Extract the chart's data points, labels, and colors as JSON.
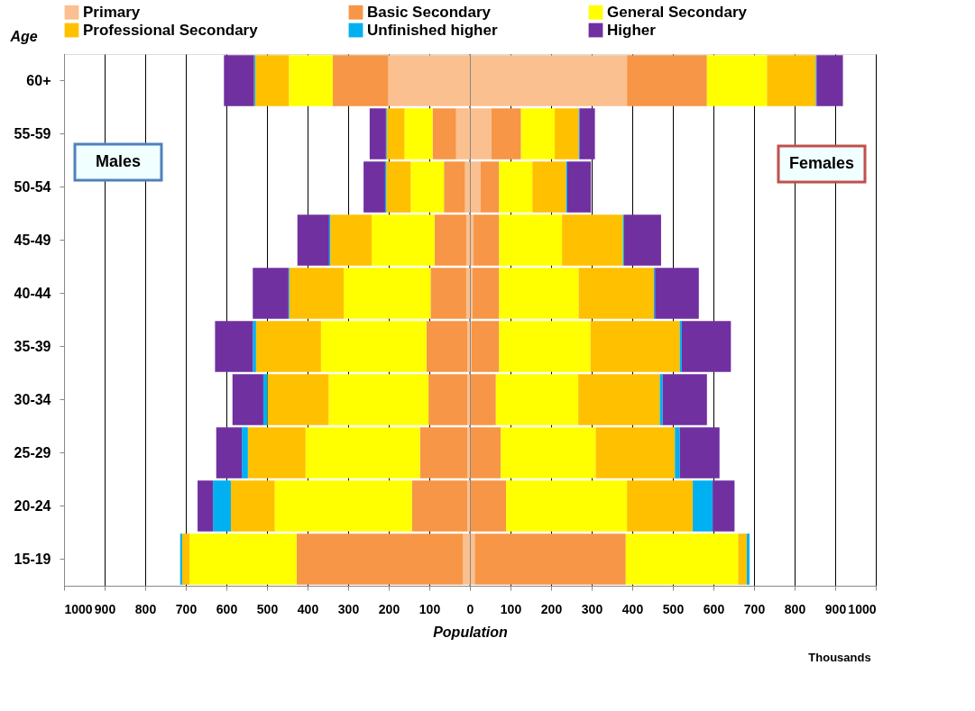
{
  "chart_data": {
    "type": "bar",
    "orientation": "horizontal",
    "stacked": true,
    "ylabel": "Age",
    "xlabel": "Population",
    "annotations": [
      "Males",
      "Females",
      "Thousands"
    ],
    "categories": [
      "60+",
      "55-59",
      "50-54",
      "45-49",
      "40-44",
      "35-39",
      "30-34",
      "25-29",
      "20-24",
      "15-19"
    ],
    "xlim": [
      -1000,
      1000
    ],
    "xticks": [
      {
        "value": -1000,
        "label": "1000"
      },
      {
        "value": -900,
        "label": "900"
      },
      {
        "value": -800,
        "label": "800"
      },
      {
        "value": -700,
        "label": "700"
      },
      {
        "value": -600,
        "label": "600"
      },
      {
        "value": -500,
        "label": "500"
      },
      {
        "value": -400,
        "label": "400"
      },
      {
        "value": -300,
        "label": "300"
      },
      {
        "value": -200,
        "label": "200"
      },
      {
        "value": -100,
        "label": "100"
      },
      0,
      100,
      200,
      300,
      400,
      500,
      600,
      700,
      800,
      900,
      1000
    ],
    "grid": "x",
    "legend": "top",
    "series": [
      {
        "name": "Primary",
        "color": "#fac090",
        "values": [
          387,
          53,
          26,
          9,
          6,
          4,
          null,
          null,
          null,
          12
        ]
      },
      {
        "name": "Basic Secondary",
        "color": "#f79646",
        "values": [
          197,
          73,
          46,
          63,
          66,
          68,
          64,
          76,
          89,
          372
        ]
      },
      {
        "name": "General Secondary",
        "color": "#ffff00",
        "values": [
          148,
          83,
          82,
          155,
          196,
          225,
          203,
          234,
          298,
          277
        ]
      },
      {
        "name": "Professional Secondary",
        "color": "#ffc000",
        "values": [
          120,
          59,
          83,
          150,
          185,
          220,
          201,
          195,
          162,
          21
        ]
      },
      {
        "name": "Unfinished higher",
        "color": "#00b0f0",
        "values": [
          2,
          2,
          3,
          3,
          3,
          5,
          7,
          12,
          49,
          7
        ]
      },
      {
        "name": "Higher",
        "color": "#7030a0",
        "values": [
          65,
          38,
          58,
          91,
          108,
          121,
          109,
          98,
          54,
          0
        ]
      },
      {
        "color": "#fac090",
        "values": [
          -201,
          -34,
          -12,
          -9,
          -9,
          -6,
          -6,
          -6,
          -6,
          -17
        ]
      },
      {
        "color": "#f79646",
        "values": [
          -137,
          -58,
          -52,
          -78,
          -88,
          -101,
          -96,
          -117,
          -137,
          -410
        ]
      },
      {
        "color": "#ffff00",
        "values": [
          -108,
          -69,
          -82,
          -155,
          -214,
          -260,
          -246,
          -282,
          -338,
          -264
        ]
      },
      {
        "color": "#ffc000",
        "values": [
          -83,
          -44,
          -60,
          -102,
          -134,
          -160,
          -151,
          -142,
          -108,
          -18
        ]
      },
      {
        "color": "#00b0f0",
        "values": [
          -3,
          -2,
          -3,
          -3,
          -2,
          -8,
          -10,
          -15,
          -44,
          -5
        ]
      },
      {
        "color": "#7030a0",
        "values": [
          -74,
          -40,
          -53,
          -78,
          -88,
          -93,
          -76,
          -63,
          -38,
          0
        ]
      }
    ]
  }
}
